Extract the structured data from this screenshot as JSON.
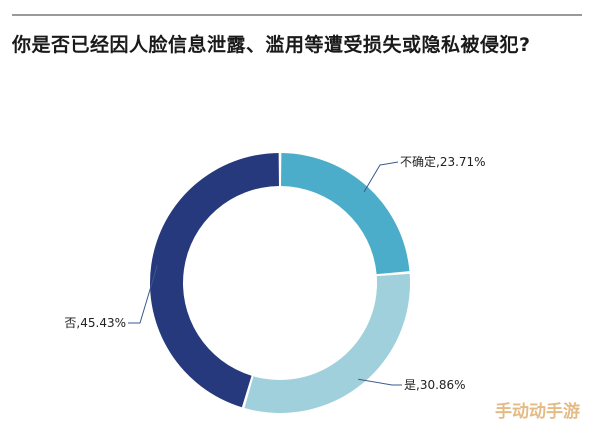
{
  "title": "你是否已经因人脸信息泄露、滥用等遭受损失或隐私被侵犯?",
  "watermark": "手动动手游",
  "chart_data": {
    "type": "pie",
    "donut": true,
    "title": "你是否已经因人脸信息泄露、滥用等遭受损失或隐私被侵犯?",
    "slices": [
      {
        "label": "不确定,23.71%",
        "value": 23.71,
        "color": "#4badc9"
      },
      {
        "label": "是,30.86%",
        "value": 30.86,
        "color": "#9fd0dc"
      },
      {
        "label": "否,45.43%",
        "value": 45.43,
        "color": "#26397d"
      }
    ],
    "start_angle": "12 o'clock",
    "direction": "clockwise"
  }
}
